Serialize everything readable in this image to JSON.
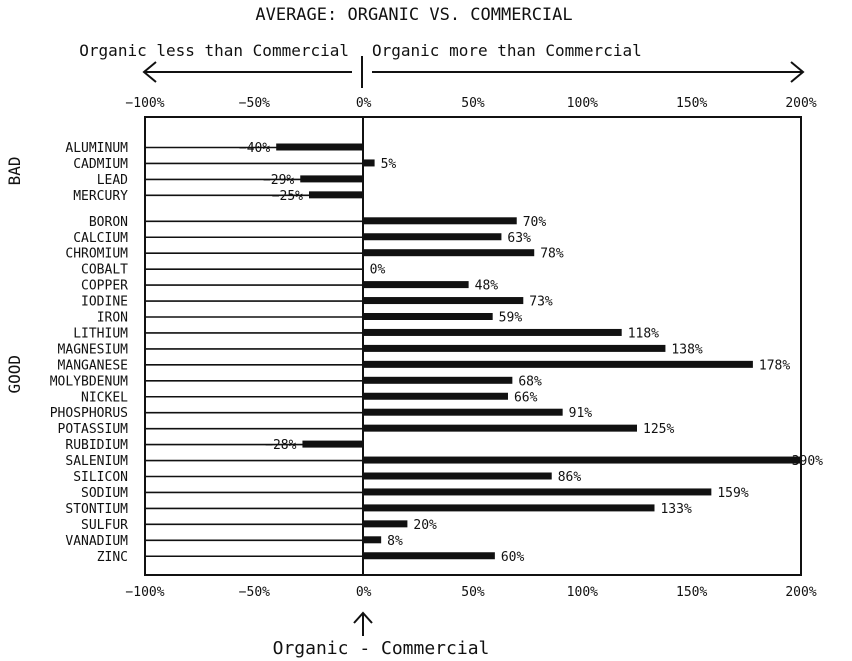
{
  "chart_data": {
    "type": "bar",
    "orientation": "horizontal",
    "title": "AVERAGE: ORGANIC VS. COMMERCIAL",
    "annotations": {
      "left_arrow_label": "Organic less than Commercial",
      "right_arrow_label": "Organic more than Commercial",
      "bottom_label": "Organic - Commercial"
    },
    "xlim": [
      -100,
      200
    ],
    "x_ticks": [
      -100,
      -50,
      0,
      50,
      100,
      150,
      200
    ],
    "x_tick_labels": [
      "−100%",
      "−50%",
      "0%",
      "50%",
      "100%",
      "150%",
      "200%"
    ],
    "groups": [
      {
        "name": "BAD",
        "items": [
          {
            "label": "ALUMINUM",
            "value": -40,
            "value_label": "−40%"
          },
          {
            "label": "CADMIUM",
            "value": 5,
            "value_label": "5%"
          },
          {
            "label": "LEAD",
            "value": -29,
            "value_label": "−29%"
          },
          {
            "label": "MERCURY",
            "value": -25,
            "value_label": "−25%"
          }
        ]
      },
      {
        "name": "GOOD",
        "items": [
          {
            "label": "BORON",
            "value": 70,
            "value_label": "70%"
          },
          {
            "label": "CALCIUM",
            "value": 63,
            "value_label": "63%"
          },
          {
            "label": "CHROMIUM",
            "value": 78,
            "value_label": "78%"
          },
          {
            "label": "COBALT",
            "value": 0,
            "value_label": "0%"
          },
          {
            "label": "COPPER",
            "value": 48,
            "value_label": "48%"
          },
          {
            "label": "IODINE",
            "value": 73,
            "value_label": "73%"
          },
          {
            "label": "IRON",
            "value": 59,
            "value_label": "59%"
          },
          {
            "label": "LITHIUM",
            "value": 118,
            "value_label": "118%"
          },
          {
            "label": "MAGNESIUM",
            "value": 138,
            "value_label": "138%"
          },
          {
            "label": "MANGANESE",
            "value": 178,
            "value_label": "178%"
          },
          {
            "label": "MOLYBDENUM",
            "value": 68,
            "value_label": "68%"
          },
          {
            "label": "NICKEL",
            "value": 66,
            "value_label": "66%"
          },
          {
            "label": "PHOSPHORUS",
            "value": 91,
            "value_label": "91%"
          },
          {
            "label": "POTASSIUM",
            "value": 125,
            "value_label": "125%"
          },
          {
            "label": "RUBIDIUM",
            "value": -28,
            "value_label": "−28%"
          },
          {
            "label": "SALENIUM",
            "value": 390,
            "value_label": "390%"
          },
          {
            "label": "SILICON",
            "value": 86,
            "value_label": "86%"
          },
          {
            "label": "SODIUM",
            "value": 159,
            "value_label": "159%"
          },
          {
            "label": "STONTIUM",
            "value": 133,
            "value_label": "133%"
          },
          {
            "label": "SULFUR",
            "value": 20,
            "value_label": "20%"
          },
          {
            "label": "VANADIUM",
            "value": 8,
            "value_label": "8%"
          },
          {
            "label": "ZINC",
            "value": 60,
            "value_label": "60%"
          }
        ]
      }
    ],
    "grid": false
  }
}
